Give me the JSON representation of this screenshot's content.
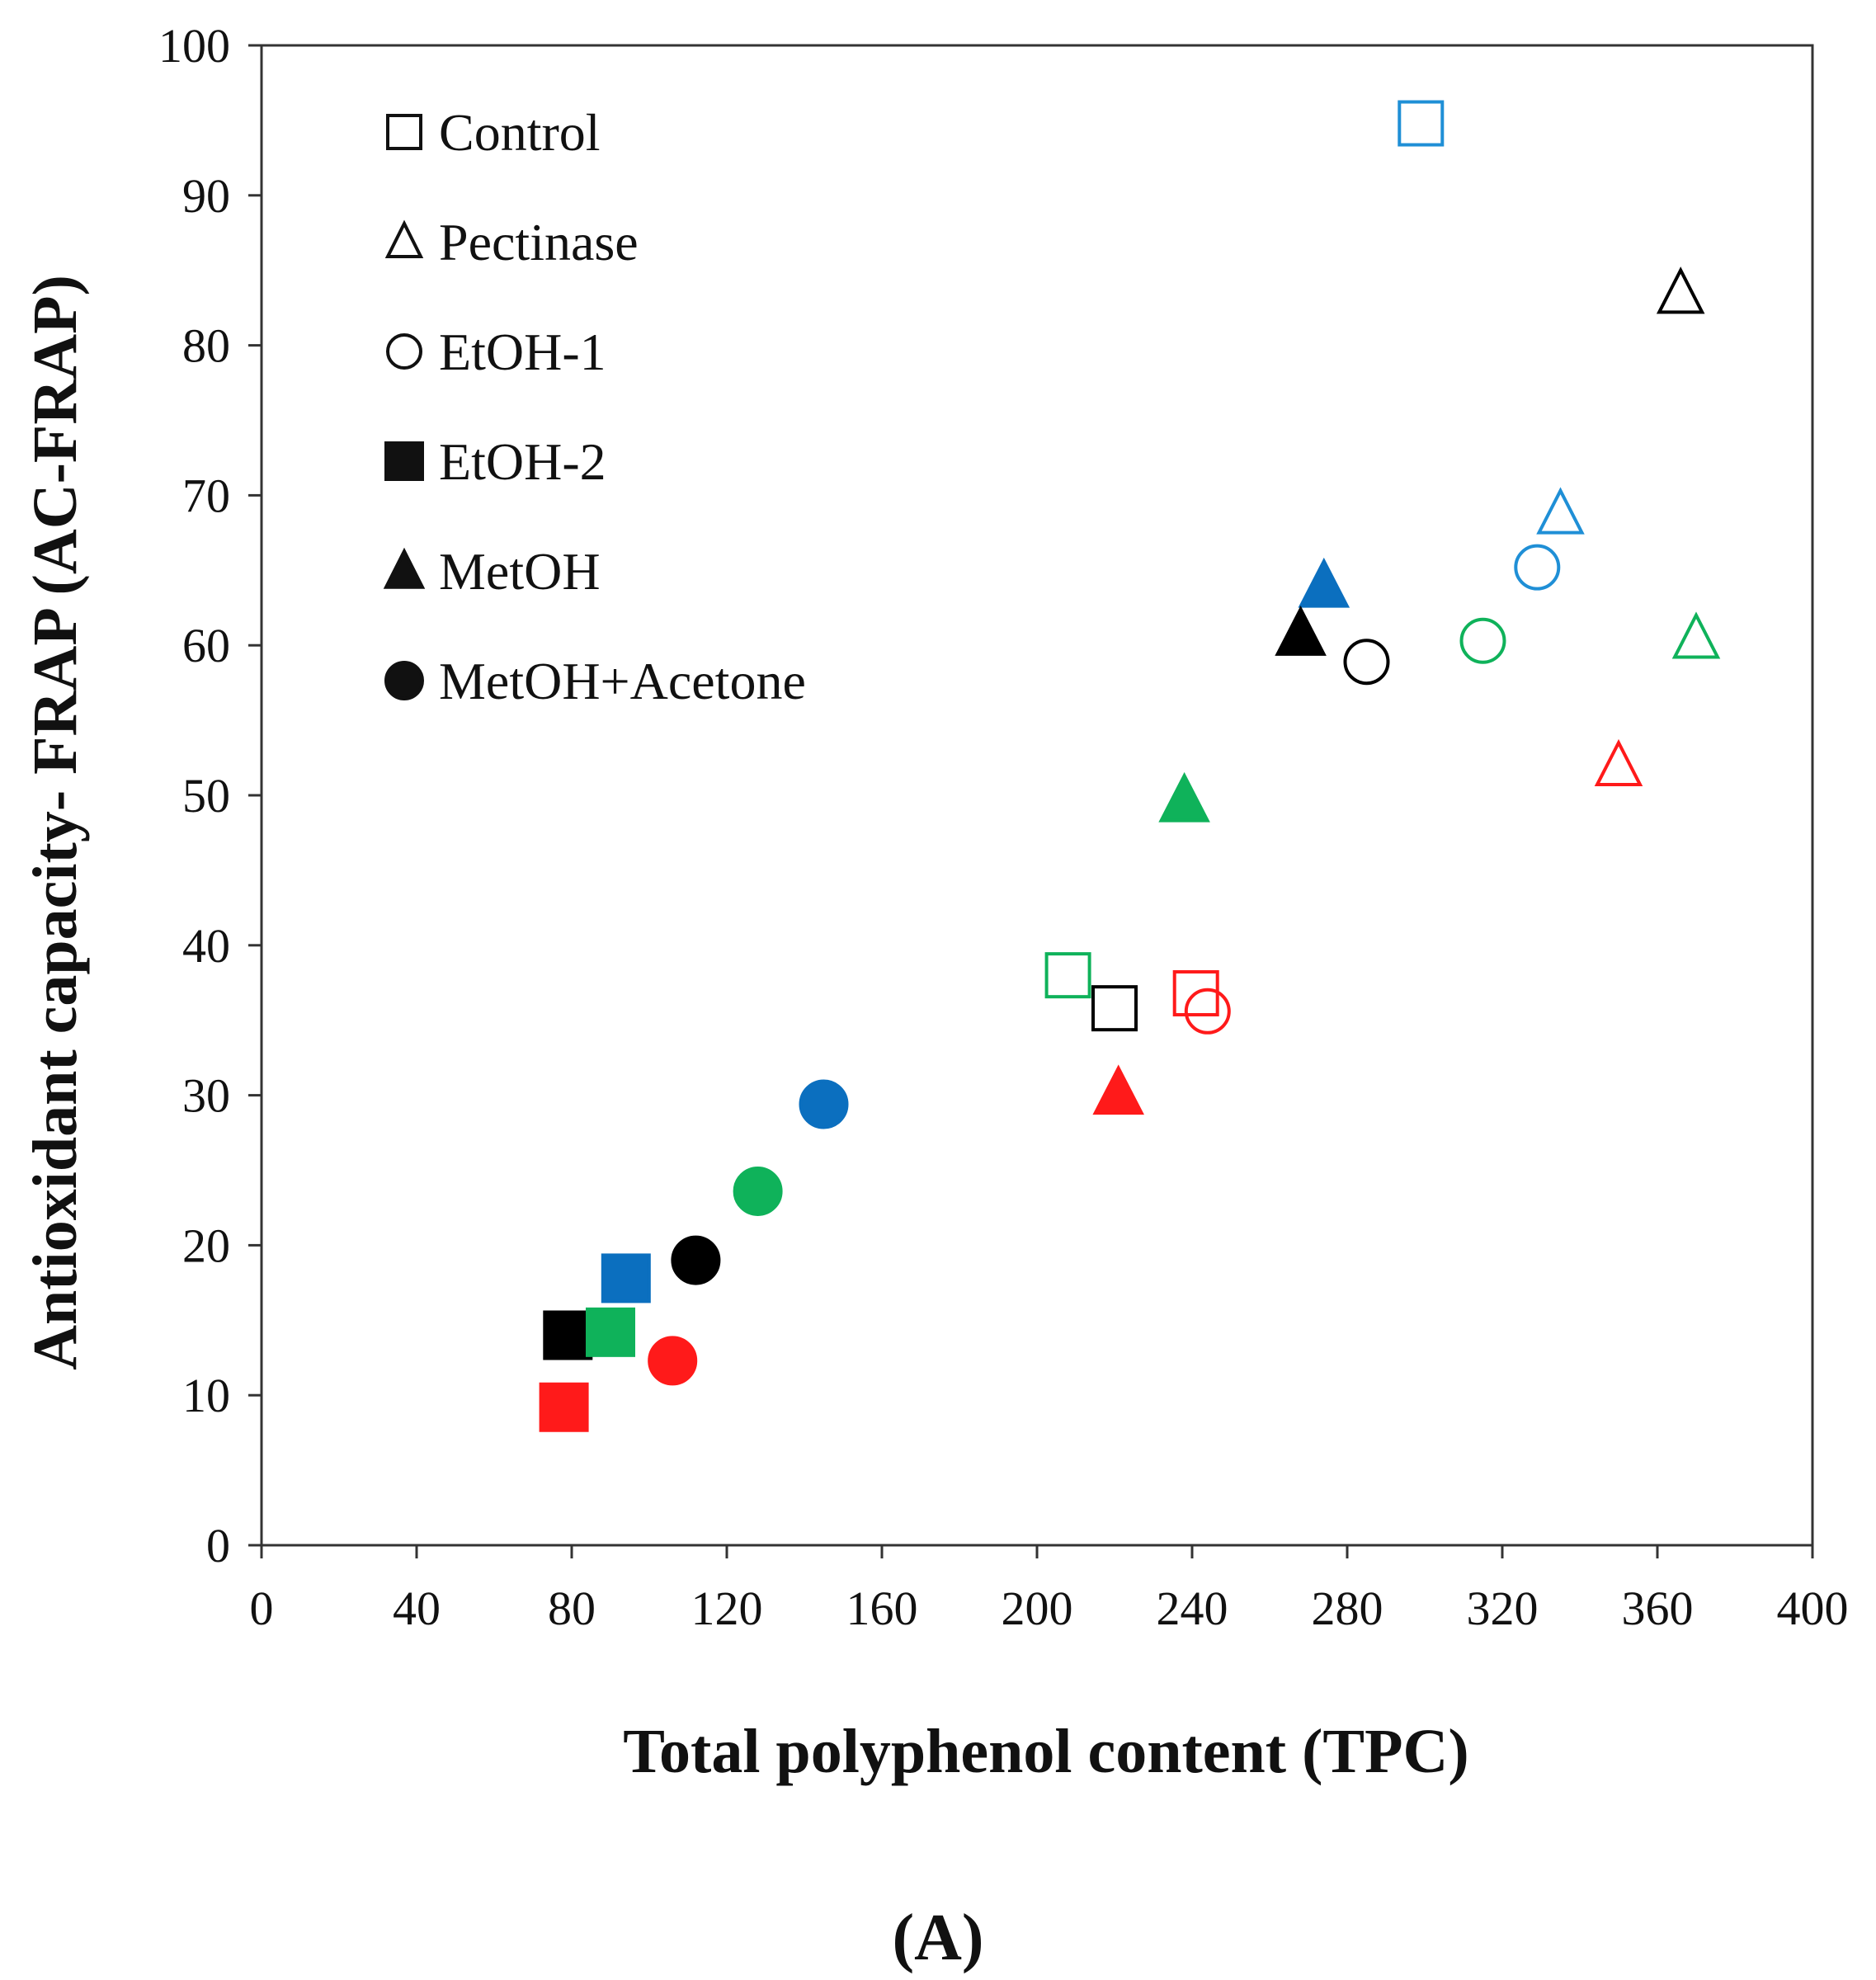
{
  "chart_data": {
    "type": "scatter",
    "title": "",
    "xlabel": "Total polyphenol content (TPC)",
    "ylabel": "Antioxidant capacity- FRAP (AC-FRAP)",
    "xlim": [
      0,
      400
    ],
    "ylim": [
      0,
      100
    ],
    "xticks": [
      0,
      40,
      80,
      120,
      160,
      200,
      240,
      280,
      320,
      360,
      400
    ],
    "yticks": [
      0,
      10,
      20,
      30,
      40,
      50,
      60,
      70,
      80,
      90,
      100
    ],
    "grid": false,
    "legend_position": "top-left",
    "panel_label": "(A)",
    "colors": {
      "black": "#000000",
      "blue": "#1f8fd6",
      "blue_filled": "#0b6fbf",
      "green": "#0fb25a",
      "red": "#ff1a1a"
    },
    "legend": [
      {
        "label": "Control",
        "marker": "square",
        "filled": false
      },
      {
        "label": "Pectinase",
        "marker": "triangle",
        "filled": false
      },
      {
        "label": "EtOH-1",
        "marker": "circle",
        "filled": false
      },
      {
        "label": "EtOH-2",
        "marker": "square",
        "filled": true
      },
      {
        "label": "MetOH",
        "marker": "triangle",
        "filled": true
      },
      {
        "label": "MetOH+Acetone",
        "marker": "circle",
        "filled": true
      }
    ],
    "series": [
      {
        "name": "Control",
        "marker": "square",
        "filled": false,
        "points": [
          {
            "x": 299,
            "y": 94.8,
            "color": "blue"
          },
          {
            "x": 208,
            "y": 38.0,
            "color": "green"
          },
          {
            "x": 220,
            "y": 35.8,
            "color": "black"
          },
          {
            "x": 241,
            "y": 36.8,
            "color": "red"
          }
        ]
      },
      {
        "name": "Pectinase",
        "marker": "triangle",
        "filled": false,
        "points": [
          {
            "x": 366,
            "y": 83.5,
            "color": "black"
          },
          {
            "x": 335,
            "y": 68.8,
            "color": "blue"
          },
          {
            "x": 370,
            "y": 60.5,
            "color": "green"
          },
          {
            "x": 350,
            "y": 52.0,
            "color": "red"
          }
        ]
      },
      {
        "name": "EtOH-1",
        "marker": "circle",
        "filled": false,
        "points": [
          {
            "x": 329,
            "y": 65.2,
            "color": "blue"
          },
          {
            "x": 315,
            "y": 60.3,
            "color": "green"
          },
          {
            "x": 285,
            "y": 58.9,
            "color": "black"
          },
          {
            "x": 244,
            "y": 35.6,
            "color": "red"
          }
        ]
      },
      {
        "name": "EtOH-2",
        "marker": "square",
        "filled": true,
        "points": [
          {
            "x": 94,
            "y": 17.8,
            "color": "blue_filled"
          },
          {
            "x": 79,
            "y": 14.0,
            "color": "black"
          },
          {
            "x": 90,
            "y": 14.2,
            "color": "green"
          },
          {
            "x": 78,
            "y": 9.2,
            "color": "red"
          }
        ]
      },
      {
        "name": "MetOH",
        "marker": "triangle",
        "filled": true,
        "points": [
          {
            "x": 274,
            "y": 64.0,
            "color": "blue_filled"
          },
          {
            "x": 268,
            "y": 60.8,
            "color": "black"
          },
          {
            "x": 238,
            "y": 49.7,
            "color": "green"
          },
          {
            "x": 221,
            "y": 30.2,
            "color": "red"
          }
        ]
      },
      {
        "name": "MetOH+Acetone",
        "marker": "circle",
        "filled": true,
        "points": [
          {
            "x": 145,
            "y": 29.4,
            "color": "blue_filled"
          },
          {
            "x": 128,
            "y": 23.6,
            "color": "green"
          },
          {
            "x": 112,
            "y": 19.0,
            "color": "black"
          },
          {
            "x": 106,
            "y": 12.3,
            "color": "red"
          }
        ]
      }
    ]
  }
}
